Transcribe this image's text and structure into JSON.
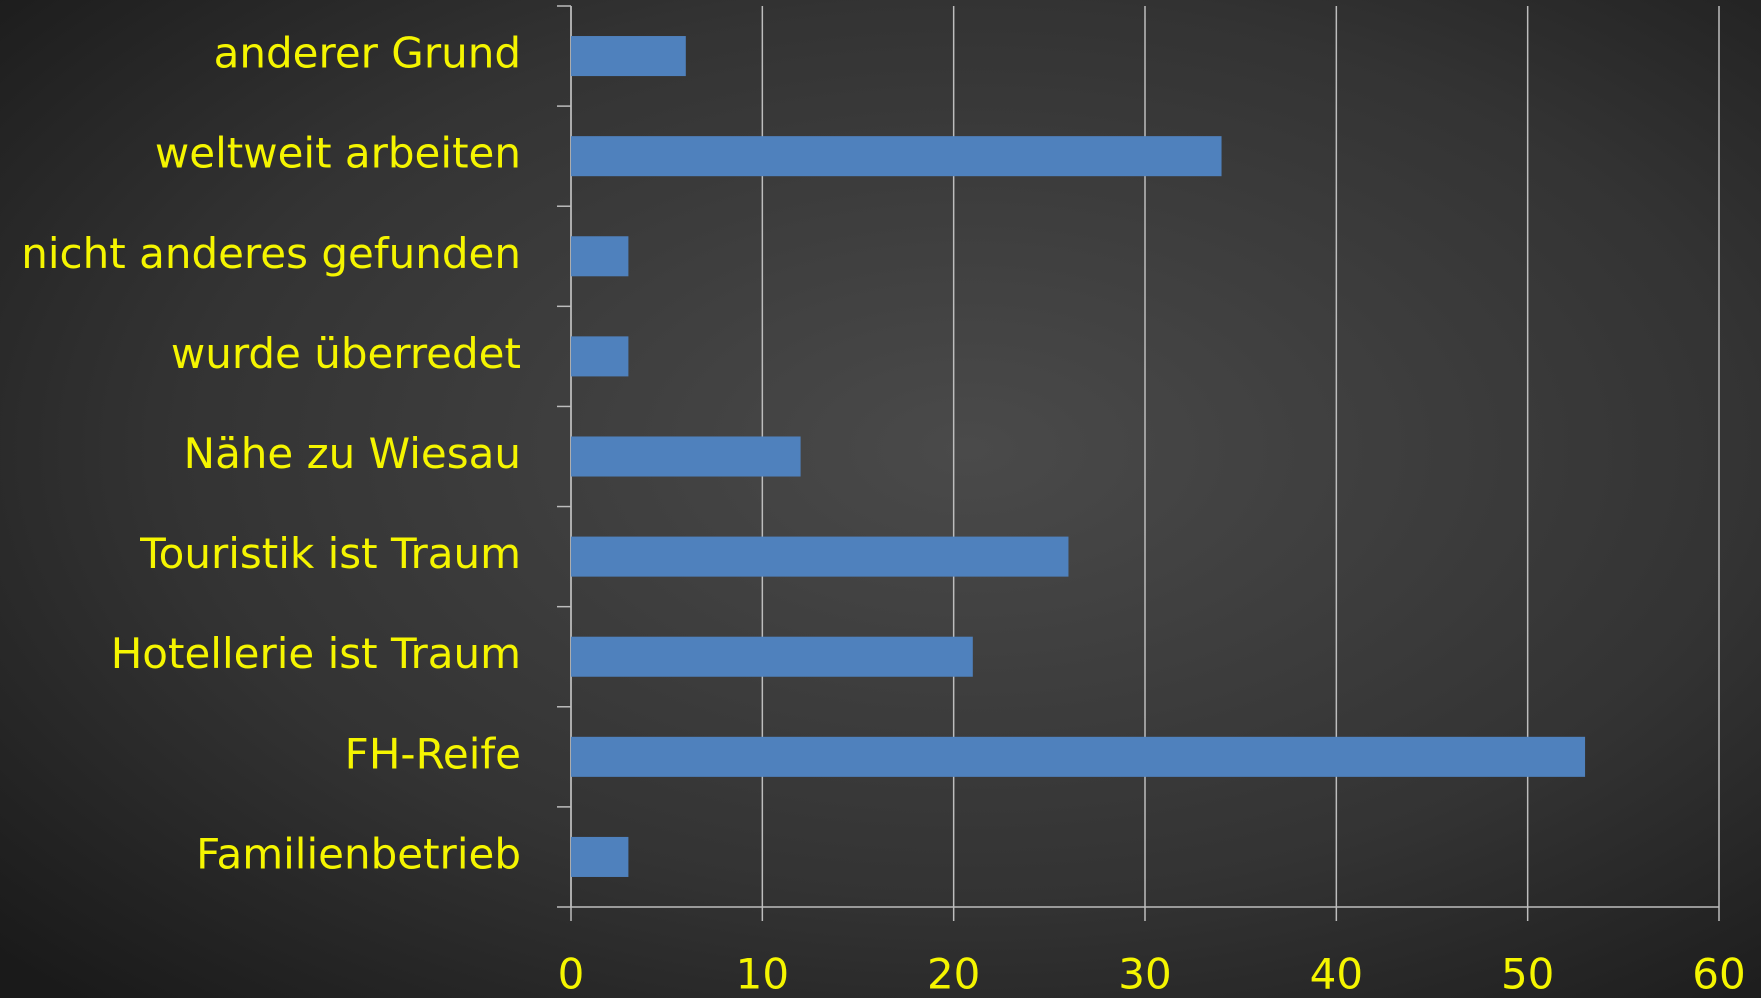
{
  "chart_data": {
    "type": "bar",
    "orientation": "horizontal",
    "categories": [
      "anderer Grund",
      "weltweit arbeiten",
      "nicht anderes gefunden",
      "wurde überredet",
      "Nähe zu Wiesau",
      "Touristik ist Traum",
      "Hotellerie ist Traum",
      "FH-Reife",
      "Familienbetrieb"
    ],
    "values": [
      6,
      34,
      3,
      3,
      12,
      26,
      21,
      53,
      3
    ],
    "color": "#4f81bd",
    "xlim": [
      0,
      60
    ],
    "xticks": [
      0,
      10,
      20,
      30,
      40,
      50,
      60
    ],
    "grid": true
  }
}
